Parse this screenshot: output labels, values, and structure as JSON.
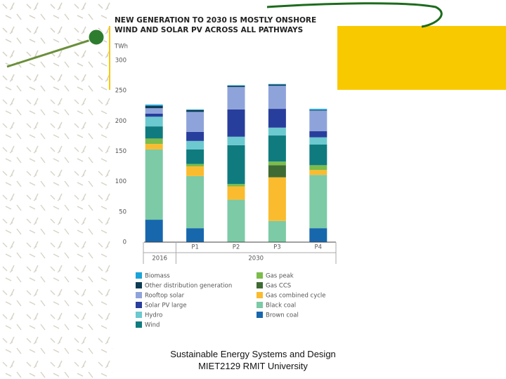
{
  "chart_data": {
    "type": "stacked_bar",
    "title": "NEW GENERATION TO 2030 IS MOSTLY ONSHORE WIND AND SOLAR PV ACROSS ALL PATHWAYS",
    "unit_label": "TWh",
    "categories": [
      null,
      "P1",
      "P2",
      "P3",
      "P4"
    ],
    "groups": [
      "2016",
      "2030"
    ],
    "ylim": [
      0,
      300
    ],
    "yticks": [
      0,
      50,
      100,
      150,
      200,
      250,
      300
    ],
    "series": [
      {
        "name": "Brown coal",
        "color": "#1767ad",
        "values": [
          37,
          23,
          0,
          0,
          23
        ]
      },
      {
        "name": "Black coal",
        "color": "#7ccaa6",
        "values": [
          116,
          86,
          70,
          35,
          88
        ]
      },
      {
        "name": "Gas combined cycle",
        "color": "#fbbb2e",
        "values": [
          9,
          16,
          22,
          72,
          8
        ]
      },
      {
        "name": "Gas CCS",
        "color": "#3e6b34",
        "values": [
          0,
          0,
          0,
          20,
          0
        ]
      },
      {
        "name": "Gas peak",
        "color": "#7cbc4b",
        "values": [
          9,
          4,
          4,
          6,
          8
        ]
      },
      {
        "name": "Wind",
        "color": "#0f7b7f",
        "values": [
          20,
          24,
          64,
          43,
          34
        ]
      },
      {
        "name": "Hydro",
        "color": "#6bc9cf",
        "values": [
          16,
          14,
          14,
          13,
          12
        ]
      },
      {
        "name": "Solar PV large",
        "color": "#283e9c",
        "values": [
          5,
          15,
          45,
          31,
          10
        ]
      },
      {
        "name": "Rooftop solar",
        "color": "#8fa3db",
        "values": [
          9,
          33,
          37,
          38,
          34
        ]
      },
      {
        "name": "Other distribution generation",
        "color": "#0c3c55",
        "values": [
          4,
          3,
          2,
          2,
          1
        ]
      },
      {
        "name": "Biomass",
        "color": "#1ba3d8",
        "values": [
          2,
          1,
          1,
          1,
          2
        ]
      }
    ]
  },
  "footer": "Sustainable Energy Systems and Design MIET2129 RMIT University"
}
